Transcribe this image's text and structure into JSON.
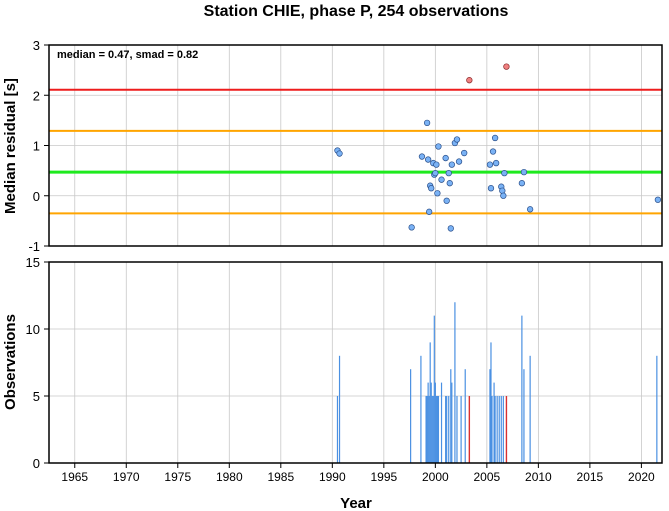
{
  "title": "Station CHIE, phase P, 254 observations",
  "annotation": "median = 0.47, smad = 0.82",
  "colors": {
    "red_line": "#ee1c1c",
    "orange_line": "#ffa500",
    "green_line": "#1eea1e",
    "point_fill": "#7ab2f5",
    "outlier_fill": "#f08080",
    "bar_normal": "#4a90e2",
    "bar_outlier": "#d93030",
    "grid": "#c8c8c8"
  },
  "chart_data": [
    {
      "type": "scatter",
      "ylabel": "Median residual [s]",
      "xlim": [
        1962.5,
        2022
      ],
      "ylim": [
        -1,
        3
      ],
      "yticks": [
        "-1",
        "0",
        "1",
        "2",
        "3"
      ],
      "ytick_values": [
        -1,
        0,
        1,
        2,
        3
      ],
      "grid": true,
      "reference_lines": [
        {
          "y": 2.11,
          "color": "red"
        },
        {
          "y": 1.29,
          "color": "orange"
        },
        {
          "y": 0.47,
          "color": "green"
        },
        {
          "y": -0.35,
          "color": "orange"
        }
      ],
      "series": [
        {
          "points": [
            [
              1990.5,
              0.9
            ],
            [
              1990.7,
              0.84
            ],
            [
              1997.7,
              -0.63
            ],
            [
              1998.7,
              0.78
            ],
            [
              1999.2,
              1.45
            ],
            [
              1999.3,
              0.72
            ],
            [
              1999.4,
              -0.32
            ],
            [
              1999.5,
              0.2
            ],
            [
              1999.6,
              0.15
            ],
            [
              1999.8,
              0.65
            ],
            [
              1999.9,
              0.42
            ],
            [
              2000.0,
              0.45
            ],
            [
              2000.1,
              0.62
            ],
            [
              2000.2,
              0.05
            ],
            [
              2000.3,
              0.98
            ],
            [
              2000.6,
              0.32
            ],
            [
              2001.0,
              0.75
            ],
            [
              2001.1,
              -0.1
            ],
            [
              2001.3,
              0.45
            ],
            [
              2001.4,
              0.25
            ],
            [
              2001.5,
              -0.65
            ],
            [
              2001.6,
              0.62
            ],
            [
              2001.9,
              1.05
            ],
            [
              2002.1,
              1.12
            ],
            [
              2002.3,
              0.68
            ],
            [
              2002.8,
              0.85
            ],
            [
              2005.3,
              0.62
            ],
            [
              2005.4,
              0.15
            ],
            [
              2005.6,
              0.88
            ],
            [
              2005.8,
              1.15
            ],
            [
              2005.9,
              0.65
            ],
            [
              2006.4,
              0.18
            ],
            [
              2006.5,
              0.1
            ],
            [
              2006.6,
              0.0
            ],
            [
              2006.7,
              0.45
            ],
            [
              2008.4,
              0.25
            ],
            [
              2008.6,
              0.47
            ],
            [
              2009.2,
              -0.27
            ],
            [
              2021.6,
              -0.08
            ]
          ],
          "outliers": [
            [
              2003.3,
              2.3
            ],
            [
              2006.9,
              2.57
            ]
          ]
        }
      ]
    },
    {
      "type": "bar",
      "xlabel": "Year",
      "ylabel": "Observations",
      "xlim": [
        1962.5,
        2022
      ],
      "ylim": [
        0,
        15
      ],
      "xticks": [
        "1965",
        "1970",
        "1975",
        "1980",
        "1985",
        "1990",
        "1995",
        "2000",
        "2005",
        "2010",
        "2015",
        "2020"
      ],
      "xtick_values": [
        1965,
        1970,
        1975,
        1980,
        1985,
        1990,
        1995,
        2000,
        2005,
        2010,
        2015,
        2020
      ],
      "yticks": [
        "0",
        "5",
        "10",
        "15"
      ],
      "ytick_values": [
        0,
        5,
        10,
        15
      ],
      "grid": true,
      "bars": [
        [
          1990.5,
          5
        ],
        [
          1990.7,
          8
        ],
        [
          1997.6,
          7
        ],
        [
          1998.6,
          8
        ],
        [
          1999.1,
          5
        ],
        [
          1999.2,
          5
        ],
        [
          1999.3,
          6
        ],
        [
          1999.4,
          5
        ],
        [
          1999.5,
          9
        ],
        [
          1999.6,
          6
        ],
        [
          1999.7,
          5
        ],
        [
          1999.8,
          5
        ],
        [
          1999.9,
          11
        ],
        [
          2000.0,
          6
        ],
        [
          2000.1,
          5
        ],
        [
          2000.2,
          5
        ],
        [
          2000.3,
          5
        ],
        [
          2000.6,
          6
        ],
        [
          2001.0,
          5
        ],
        [
          2001.1,
          5
        ],
        [
          2001.3,
          5
        ],
        [
          2001.5,
          7
        ],
        [
          2001.6,
          6
        ],
        [
          2001.9,
          12
        ],
        [
          2002.1,
          5
        ],
        [
          2002.5,
          5
        ],
        [
          2002.9,
          7
        ],
        [
          2005.3,
          7
        ],
        [
          2005.4,
          9
        ],
        [
          2005.5,
          5
        ],
        [
          2005.7,
          6
        ],
        [
          2005.8,
          5
        ],
        [
          2006.0,
          5
        ],
        [
          2006.2,
          5
        ],
        [
          2006.4,
          5
        ],
        [
          2006.6,
          5
        ],
        [
          2008.4,
          11
        ],
        [
          2008.6,
          7
        ],
        [
          2009.2,
          8
        ],
        [
          2021.5,
          8
        ]
      ],
      "outlier_bars": [
        [
          2003.3,
          5
        ],
        [
          2006.9,
          5
        ]
      ]
    }
  ]
}
